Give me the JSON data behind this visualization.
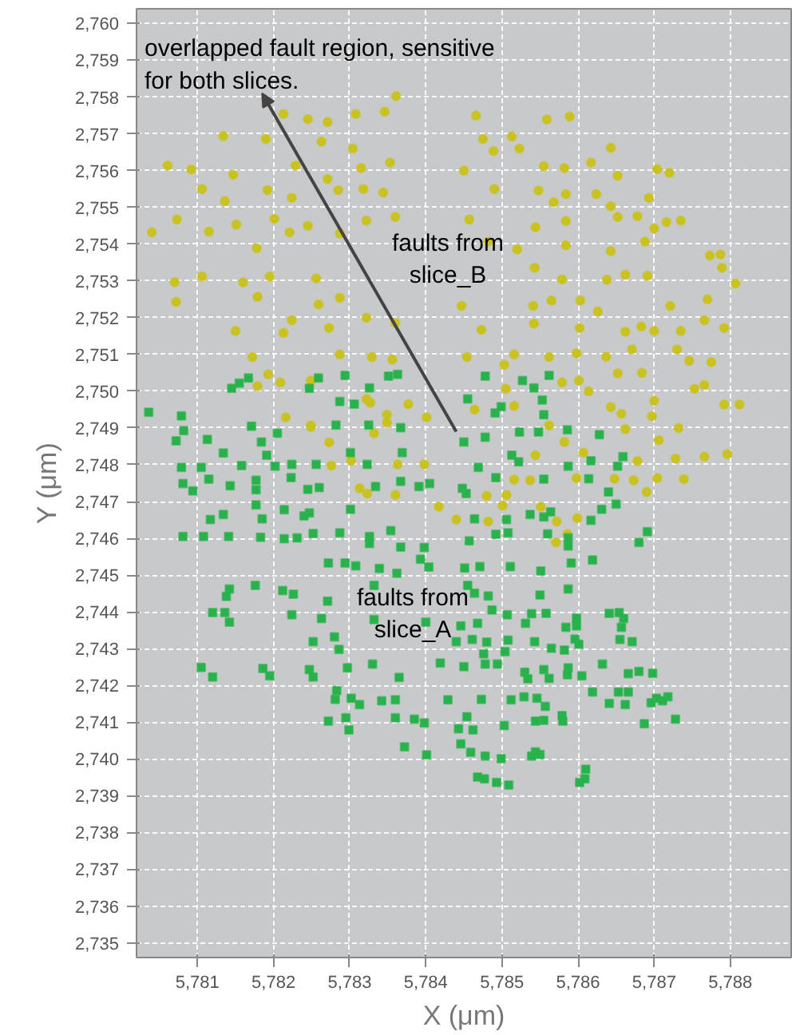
{
  "chart_data": {
    "type": "scatter",
    "xlabel": "X (μm)",
    "ylabel": "Y (μm)",
    "xlim": [
      5780.2,
      5788.8
    ],
    "ylim": [
      2734.6,
      2760.4
    ],
    "xticks": [
      {
        "value": 5781,
        "label": "5,781"
      },
      {
        "value": 5782,
        "label": "5,782"
      },
      {
        "value": 5783,
        "label": "5,783"
      },
      {
        "value": 5784,
        "label": "5,784"
      },
      {
        "value": 5785,
        "label": "5,785"
      },
      {
        "value": 5786,
        "label": "5,786"
      },
      {
        "value": 5787,
        "label": "5,787"
      },
      {
        "value": 5788,
        "label": "5,788"
      }
    ],
    "yticks": [
      {
        "value": 2735,
        "label": "2,735"
      },
      {
        "value": 2736,
        "label": "2,736"
      },
      {
        "value": 2737,
        "label": "2,737"
      },
      {
        "value": 2738,
        "label": "2,738"
      },
      {
        "value": 2739,
        "label": "2,739"
      },
      {
        "value": 2740,
        "label": "2,740"
      },
      {
        "value": 2741,
        "label": "2,741"
      },
      {
        "value": 2742,
        "label": "2,742"
      },
      {
        "value": 2743,
        "label": "2,743"
      },
      {
        "value": 2744,
        "label": "2,744"
      },
      {
        "value": 2745,
        "label": "2,745"
      },
      {
        "value": 2746,
        "label": "2,746"
      },
      {
        "value": 2747,
        "label": "2,747"
      },
      {
        "value": 2748,
        "label": "2,748"
      },
      {
        "value": 2749,
        "label": "2,749"
      },
      {
        "value": 2750,
        "label": "2,750"
      },
      {
        "value": 2751,
        "label": "2,751"
      },
      {
        "value": 2752,
        "label": "2,752"
      },
      {
        "value": 2753,
        "label": "2,753"
      },
      {
        "value": 2754,
        "label": "2,754"
      },
      {
        "value": 2755,
        "label": "2,755"
      },
      {
        "value": 2756,
        "label": "2,756"
      },
      {
        "value": 2757,
        "label": "2,757"
      },
      {
        "value": 2758,
        "label": "2,758"
      },
      {
        "value": 2759,
        "label": "2,759"
      },
      {
        "value": 2760,
        "label": "2,760"
      }
    ],
    "grid": true,
    "annotations": [
      {
        "text": "overlapped fault region, sensitive\nfor both slices.",
        "x": 5784.4,
        "y": 2748.9
      },
      "faults from\nslice_B",
      "faults from\nslice_A"
    ],
    "series": [
      {
        "color": "#c9c21f",
        "marker": "circle",
        "x": [
          5782.13,
          5782.45,
          5782.71,
          5783.08,
          5783.46,
          5783.61,
          5781.34,
          5781.9,
          5782.63,
          5783.04,
          5780.61,
          5780.92,
          5781.47,
          5782.29,
          5782.71,
          5783.15,
          5783.53,
          5781.06,
          5781.36,
          5781.92,
          5782.24,
          5782.85,
          5783.18,
          5783.44,
          5780.4,
          5780.73,
          5781.15,
          5781.51,
          5781.78,
          5782.01,
          5782.21,
          5782.45,
          5782.87,
          5783.22,
          5783.6,
          5780.7,
          5781.06,
          5781.6,
          5781.95,
          5782.56,
          5782.87,
          5780.72,
          5781.79,
          5782.24,
          5782.59,
          5781.5,
          5782.13,
          5782.73,
          5783.22,
          5783.6,
          5781.72,
          5781.79,
          5782.09,
          5782.49,
          5782.87,
          5783.29,
          5783.56,
          5783.22,
          5782.49,
          5783.49,
          5784.01,
          5784.66,
          5785.59,
          5785.89,
          5784.75,
          5785.13,
          5785.23,
          5784.89,
          5786.43,
          5785.55,
          5785.82,
          5786.17,
          5786.52,
          5787.04,
          5787.2,
          5784.5,
          5784.9,
          5785.48,
          5785.84,
          5786.24,
          5785.68,
          5786.43,
          5786.93,
          5784.57,
          5785.44,
          5785.84,
          5786.52,
          5786.78,
          5787.16,
          5787.35,
          5787.0,
          5784.82,
          5785.2,
          5785.84,
          5786.43,
          5786.88,
          5787.73,
          5787.87,
          5785.43,
          5785.79,
          5786.38,
          5786.62,
          5786.91,
          5787.89,
          5788.07,
          5784.47,
          5785.41,
          5785.65,
          5786.03,
          5786.26,
          5787.21,
          5787.7,
          5784.73,
          5785.42,
          5786.02,
          5786.62,
          5786.83,
          5787.0,
          5787.35,
          5787.66,
          5787.92,
          5784.54,
          5785.16,
          5785.62,
          5785.98,
          5786.37,
          5786.71,
          5787.3,
          5787.46,
          5787.75,
          5785.03,
          5786.52,
          5786.84,
          5785.79,
          5786.01,
          5785.05,
          5786.14,
          5787.53,
          5787.66,
          5787.0,
          5787.92,
          5788.12,
          5786.43,
          5786.57,
          5786.97,
          5784.64,
          5785.16,
          5785.62,
          5786.62,
          5787.32,
          5787.06,
          5785.82,
          5786.07,
          5785.44,
          5787.66,
          5787.96,
          5786.78,
          5787.28,
          5785.16,
          5785.98,
          5786.48,
          5787.04,
          5787.39,
          5786.9,
          5786.73,
          5785.99,
          5785.72,
          5785.71,
          5785.51,
          5785.01,
          5784.8,
          5785.06,
          5784.82,
          5785.37,
          5785.86,
          5782.16,
          5782.49,
          5782.73,
          5782.76,
          5783.02,
          5783.13,
          5783.23,
          5783.32,
          5783.49,
          5783.63,
          5783.6,
          5783.98,
          5784.17,
          5784.4,
          5783.77,
          5783.27,
          5781.93
        ],
        "values": [
          2757.54,
          2757.4,
          2757.32,
          2757.54,
          2757.6,
          2758.03,
          2756.94,
          2756.86,
          2756.79,
          2756.6,
          2756.14,
          2756.03,
          2755.89,
          2756.14,
          2755.77,
          2756.07,
          2756.22,
          2755.5,
          2755.17,
          2755.47,
          2755.26,
          2755.47,
          2755.5,
          2755.4,
          2754.32,
          2754.67,
          2754.34,
          2754.53,
          2753.89,
          2754.69,
          2754.32,
          2754.5,
          2754.29,
          2754.64,
          2754.74,
          2752.97,
          2753.12,
          2752.96,
          2753.12,
          2753.07,
          2752.54,
          2752.43,
          2752.57,
          2751.93,
          2752.36,
          2751.64,
          2751.59,
          2751.72,
          2752.0,
          2751.86,
          2750.93,
          2750.14,
          2750.24,
          2750.29,
          2751.0,
          2750.93,
          2750.86,
          2749.79,
          2749.07,
          2749.14,
          2749.29,
          2757.5,
          2757.39,
          2757.47,
          2756.86,
          2756.93,
          2756.6,
          2756.53,
          2756.62,
          2756.12,
          2756.07,
          2756.22,
          2755.86,
          2756.04,
          2755.94,
          2756.0,
          2755.5,
          2755.46,
          2755.36,
          2755.36,
          2755.14,
          2755.03,
          2755.26,
          2754.67,
          2754.46,
          2754.63,
          2754.74,
          2754.76,
          2754.6,
          2754.64,
          2754.43,
          2754.07,
          2753.86,
          2753.97,
          2753.81,
          2754.07,
          2753.69,
          2753.72,
          2753.36,
          2753.04,
          2753.03,
          2753.17,
          2753.14,
          2753.36,
          2752.93,
          2752.32,
          2752.32,
          2752.47,
          2752.47,
          2752.17,
          2752.32,
          2752.5,
          2751.67,
          2751.84,
          2751.72,
          2751.62,
          2751.76,
          2751.64,
          2751.64,
          2751.93,
          2751.72,
          2750.93,
          2751.0,
          2750.93,
          2751.03,
          2750.94,
          2751.14,
          2751.14,
          2750.83,
          2750.79,
          2750.72,
          2750.49,
          2750.5,
          2750.24,
          2750.29,
          2750.07,
          2750.0,
          2750.07,
          2750.17,
          2749.74,
          2749.64,
          2749.64,
          2749.57,
          2749.39,
          2749.32,
          2749.5,
          2749.6,
          2749.07,
          2748.97,
          2749.0,
          2748.67,
          2748.62,
          2748.33,
          2748.26,
          2748.22,
          2748.29,
          2748.1,
          2748.17,
          2747.6,
          2747.64,
          2747.62,
          2747.64,
          2747.61,
          2747.26,
          2747.58,
          2746.55,
          2746.46,
          2745.89,
          2746.86,
          2746.89,
          2747.15,
          2747.18,
          2746.46,
          2747.58,
          2746.12,
          2749.29,
          2749.03,
          2748.61,
          2747.98,
          2748.11,
          2747.36,
          2747.22,
          2748.86,
          2749.36,
          2748.01,
          2747.18,
          2748.01,
          2746.86,
          2746.51,
          2749.65,
          2749.69,
          2750.46
        ]
      },
      {
        "color": "#29b24c",
        "marker": "square",
        "x": [
          5780.36,
          5780.79,
          5780.82,
          5780.72,
          5781.13,
          5781.34,
          5780.79,
          5781.05,
          5781.15,
          5780.81,
          5780.94,
          5781.43,
          5781.58,
          5781.71,
          5781.84,
          5781.91,
          5782.05,
          5782.24,
          5782.02,
          5781.77,
          5781.77,
          5782.23,
          5782.45,
          5782.6,
          5782.56,
          5781.17,
          5781.34,
          5781.77,
          5781.85,
          5782.14,
          5782.4,
          5782.47,
          5780.81,
          5781.08,
          5781.41,
          5781.83,
          5782.14,
          5782.31,
          5782.52,
          5782.87,
          5783.26,
          5783.26,
          5783.54,
          5783.01,
          5782.72,
          5782.94,
          5783.08,
          5783.39,
          5783.62,
          5783.67,
          5783.98,
          5783.93,
          5784.04,
          5781.42,
          5781.38,
          5781.76,
          5782.12,
          5782.26,
          5781.2,
          5781.36,
          5781.42,
          5782.24,
          5782.63,
          5782.71,
          5783.32,
          5783.32,
          5784.0,
          5782.52,
          5782.8,
          5782.86,
          5783.3,
          5781.05,
          5781.2,
          5781.86,
          5781.95,
          5782.47,
          5782.52,
          5782.97,
          5782.83,
          5782.81,
          5783.02,
          5783.13,
          5783.42,
          5783.6,
          5783.65,
          5782.72,
          5782.95,
          5782.99,
          5783.6,
          5783.85,
          5783.98,
          5783.72,
          5784.01,
          5784.29,
          5784.19,
          5784.4,
          5782.59,
          5782.47,
          5781.67,
          5781.55,
          5781.45,
          5782.87,
          5783.06,
          5782.94,
          5783.26,
          5783.51,
          5783.63,
          5782.82,
          5783.25,
          5783.67,
          5783.23,
          5783.34,
          5783.67,
          5783.91,
          5784.05,
          5783.01,
          5783.69,
          5784.78,
          5785.27,
          5785.42,
          5785.62,
          5784.55,
          5784.91,
          5784.99,
          5785.53,
          5785.55,
          5784.78,
          5784.5,
          5785.23,
          5785.48,
          5785.86,
          5786.28,
          5785.13,
          5785.22,
          5784.69,
          5785.87,
          5786.17,
          5786.59,
          5786.52,
          5784.92,
          5785.55,
          5786.14,
          5784.48,
          5784.53,
          5786.4,
          5786.5,
          5786.31,
          5785.37,
          5785.55,
          5785.64,
          5786.17,
          5784.64,
          5785.06,
          5785.08,
          5784.92,
          5785.6,
          5785.87,
          5785.87,
          5786.91,
          5786.8,
          5784.57,
          5784.51,
          5784.71,
          5785.11,
          5785.51,
          5785.91,
          5786.19,
          5784.55,
          5784.64,
          5784.82,
          5785.5,
          5785.87,
          5784.87,
          5785.07,
          5785.39,
          5785.58,
          5786.41,
          5786.54,
          5786.6,
          5786.57,
          5785.98,
          5785.98,
          5785.84,
          5785.31,
          5784.68,
          5784.46,
          5784.61,
          5784.8,
          5785.08,
          5785.43,
          5785.65,
          5785.82,
          5785.96,
          5786.01,
          5786.55,
          5786.71,
          5784.76,
          5785.04,
          5784.5,
          5784.78,
          5784.94,
          5785.3,
          5785.55,
          5785.34,
          5785.62,
          5785.87,
          5785.86,
          5786.05,
          5786.32,
          5786.66,
          5786.8,
          5786.98,
          5784.73,
          5785.12,
          5785.29,
          5785.46,
          5785.57,
          5786.19,
          5786.53,
          5786.66,
          5786.41,
          5786.62,
          5786.96,
          5787.03,
          5787.11,
          5787.18,
          5784.54,
          5785.44,
          5785.55,
          5785.79,
          5785.8,
          5786.87,
          5787.28,
          5785.03,
          5784.43,
          5784.62,
          5784.46,
          5784.59,
          5784.78,
          5784.99,
          5785.39,
          5785.44,
          5785.5,
          5786.1,
          5786.09,
          5786.02,
          5784.68,
          5784.77,
          5784.93,
          5785.09
        ],
        "values": [
          2749.43,
          2749.33,
          2748.93,
          2748.65,
          2748.69,
          2748.32,
          2747.93,
          2747.93,
          2747.61,
          2747.49,
          2747.29,
          2747.43,
          2747.98,
          2749.05,
          2748.62,
          2748.26,
          2748.86,
          2748.01,
          2747.96,
          2747.58,
          2747.32,
          2747.65,
          2747.33,
          2747.38,
          2748.01,
          2746.51,
          2746.65,
          2746.91,
          2746.53,
          2746.78,
          2746.61,
          2746.69,
          2746.05,
          2746.05,
          2746.05,
          2746.03,
          2745.99,
          2746.01,
          2746.13,
          2746.15,
          2746.05,
          2745.86,
          2746.21,
          2746.79,
          2745.33,
          2745.33,
          2745.25,
          2745.18,
          2745.05,
          2745.76,
          2745.75,
          2745.43,
          2745.22,
          2744.62,
          2744.42,
          2744.72,
          2744.58,
          2744.48,
          2743.98,
          2743.98,
          2743.72,
          2743.92,
          2743.82,
          2744.29,
          2744.72,
          2743.79,
          2743.72,
          2743.19,
          2743.32,
          2742.98,
          2742.58,
          2742.49,
          2742.23,
          2742.46,
          2742.26,
          2742.43,
          2742.23,
          2742.48,
          2741.86,
          2741.62,
          2741.65,
          2741.48,
          2741.58,
          2741.61,
          2742.22,
          2741.03,
          2741.12,
          2740.79,
          2741.12,
          2741.08,
          2740.98,
          2740.33,
          2740.11,
          2741.61,
          2742.61,
          2743.19,
          2750.36,
          2750.08,
          2750.36,
          2750.22,
          2750.08,
          2749.72,
          2749.65,
          2750.43,
          2750.09,
          2750.41,
          2750.46,
          2749.08,
          2749.08,
          2749.01,
          2748.01,
          2747.41,
          2747.55,
          2747.41,
          2747.49,
          2748.33,
          2748.33,
          2750.41,
          2750.29,
          2750.09,
          2750.43,
          2749.79,
          2749.41,
          2749.58,
          2749.76,
          2749.36,
          2748.75,
          2748.62,
          2748.89,
          2748.89,
          2748.95,
          2748.82,
          2748.26,
          2748.08,
          2747.93,
          2747.96,
          2748.11,
          2748.22,
          2747.96,
          2747.65,
          2747.61,
          2747.62,
          2747.36,
          2747.22,
          2747.26,
          2746.93,
          2746.79,
          2746.65,
          2746.58,
          2746.72,
          2746.49,
          2746.53,
          2746.51,
          2746.15,
          2746.11,
          2746.12,
          2746.01,
          2745.79,
          2746.18,
          2745.89,
          2745.93,
          2745.19,
          2745.23,
          2745.23,
          2745.11,
          2745.33,
          2745.41,
          2744.72,
          2744.51,
          2744.43,
          2744.46,
          2744.62,
          2744.05,
          2743.92,
          2743.95,
          2743.96,
          2743.96,
          2743.98,
          2743.82,
          2743.58,
          2743.83,
          2743.62,
          2743.58,
          2743.69,
          2743.69,
          2743.62,
          2743.25,
          2743.18,
          2743.23,
          2743.19,
          2743.01,
          2742.96,
          2743.26,
          2743.12,
          2743.25,
          2743.19,
          2742.86,
          2742.92,
          2742.51,
          2742.58,
          2742.58,
          2742.36,
          2742.43,
          2742.18,
          2742.19,
          2742.48,
          2742.29,
          2742.26,
          2742.58,
          2742.32,
          2742.38,
          2742.33,
          2741.62,
          2741.61,
          2741.69,
          2741.65,
          2741.43,
          2741.82,
          2741.82,
          2741.82,
          2741.51,
          2741.48,
          2741.53,
          2741.65,
          2741.58,
          2741.69,
          2741.15,
          2741.03,
          2741.05,
          2741.18,
          2741.03,
          2740.96,
          2741.08,
          2740.91,
          2740.82,
          2740.79,
          2740.41,
          2740.18,
          2740.08,
          2740.01,
          2740.08,
          2740.19,
          2740.12,
          2739.72,
          2739.46,
          2739.36,
          2739.51,
          2739.46,
          2739.36,
          2739.29
        ]
      }
    ]
  }
}
